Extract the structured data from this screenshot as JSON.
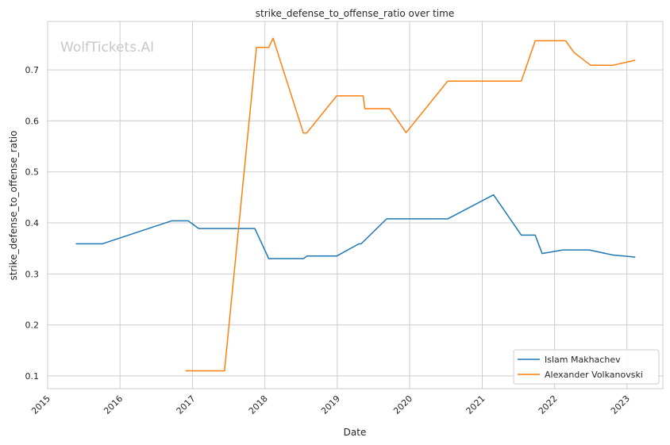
{
  "chart_data": {
    "type": "line",
    "title": "strike_defense_to_offense_ratio over time",
    "xlabel": "Date",
    "ylabel": "strike_defense_to_offense_ratio",
    "watermark": "WolfTickets.AI",
    "x_ticks": [
      "2015",
      "2016",
      "2017",
      "2018",
      "2019",
      "2020",
      "2021",
      "2022",
      "2023"
    ],
    "y_ticks": [
      0.1,
      0.2,
      0.3,
      0.4,
      0.5,
      0.6,
      0.7
    ],
    "xlim": [
      "2015-01-01",
      "2023-07-01"
    ],
    "ylim": [
      0.075,
      0.795
    ],
    "grid": true,
    "legend_position": "lower-right",
    "series": [
      {
        "name": "Islam Makhachev",
        "color": "#1f77b4",
        "points": [
          [
            "2015-05-23",
            0.359
          ],
          [
            "2015-10-03",
            0.359
          ],
          [
            "2016-09-17",
            0.404
          ],
          [
            "2016-12-10",
            0.404
          ],
          [
            "2017-02-01",
            0.389
          ],
          [
            "2017-11-11",
            0.389
          ],
          [
            "2018-01-20",
            0.33
          ],
          [
            "2018-07-15",
            0.33
          ],
          [
            "2018-08-01",
            0.335
          ],
          [
            "2018-12-29",
            0.335
          ],
          [
            "2019-04-20",
            0.359
          ],
          [
            "2019-05-01",
            0.359
          ],
          [
            "2019-09-07",
            0.408
          ],
          [
            "2020-07-11",
            0.408
          ],
          [
            "2021-02-27",
            0.455
          ],
          [
            "2021-07-17",
            0.376
          ],
          [
            "2021-09-25",
            0.376
          ],
          [
            "2021-10-30",
            0.34
          ],
          [
            "2022-02-12",
            0.347
          ],
          [
            "2022-06-25",
            0.347
          ],
          [
            "2022-10-22",
            0.337
          ],
          [
            "2023-02-12",
            0.333
          ]
        ]
      },
      {
        "name": "Alexander Volkanovski",
        "color": "#ff7f0e",
        "points": [
          [
            "2016-11-26",
            0.11
          ],
          [
            "2017-06-11",
            0.11
          ],
          [
            "2017-11-19",
            0.744
          ],
          [
            "2018-01-20",
            0.744
          ],
          [
            "2018-02-11",
            0.762
          ],
          [
            "2018-07-14",
            0.576
          ],
          [
            "2018-07-30",
            0.576
          ],
          [
            "2018-12-29",
            0.649
          ],
          [
            "2019-05-11",
            0.649
          ],
          [
            "2019-05-20",
            0.624
          ],
          [
            "2019-09-21",
            0.624
          ],
          [
            "2019-12-14",
            0.577
          ],
          [
            "2020-07-11",
            0.678
          ],
          [
            "2020-07-20",
            0.678
          ],
          [
            "2021-07-17",
            0.678
          ],
          [
            "2021-09-25",
            0.757
          ],
          [
            "2022-02-26",
            0.757
          ],
          [
            "2022-04-09",
            0.734
          ],
          [
            "2022-07-02",
            0.709
          ],
          [
            "2022-10-22",
            0.709
          ],
          [
            "2023-02-12",
            0.719
          ]
        ]
      }
    ]
  }
}
